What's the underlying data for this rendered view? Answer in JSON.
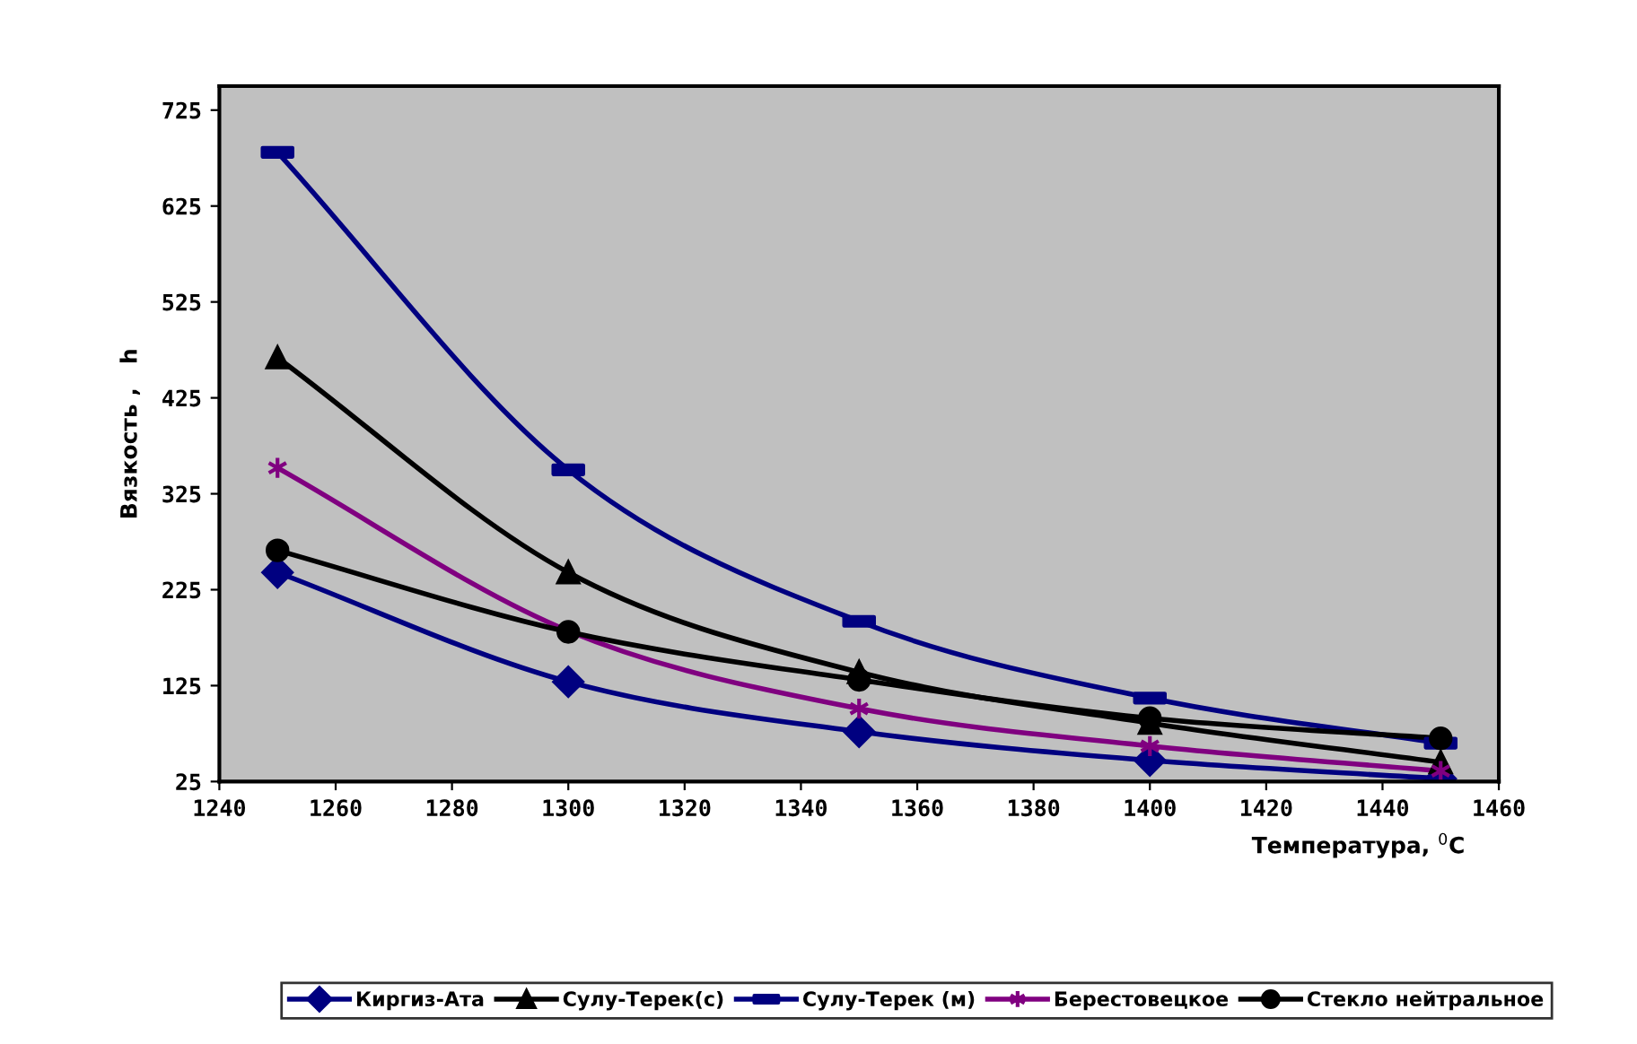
{
  "chart_data": {
    "type": "line",
    "xlabel": "Температура, $^{0}$C",
    "ylabel": "Вязкость ,   h",
    "x": [
      1250,
      1300,
      1350,
      1400,
      1450
    ],
    "series": [
      {
        "name": "Киргиз-Ата",
        "color": "#000080",
        "marker": "diamond",
        "values": [
          243,
          129,
          77,
          47,
          28
        ]
      },
      {
        "name": "Сулу-Терек(с)",
        "color": "#000000",
        "marker": "triangle",
        "values": [
          467,
          243,
          139,
          86,
          45
        ]
      },
      {
        "name": "Сулу-Терек (м)",
        "color": "#000080",
        "marker": "square",
        "values": [
          681,
          350,
          192,
          112,
          65
        ]
      },
      {
        "name": "Берестовецкое",
        "color": "#800080",
        "marker": "cross",
        "values": [
          352,
          182,
          101,
          62,
          36
        ]
      },
      {
        "name": "Стекло нейтральное",
        "color": "#000000",
        "marker": "circle",
        "values": [
          266,
          181,
          131,
          91,
          70
        ]
      }
    ],
    "xlim": [
      1240,
      1460
    ],
    "xticks": [
      1240,
      1260,
      1280,
      1300,
      1320,
      1340,
      1360,
      1380,
      1400,
      1420,
      1440,
      1460
    ],
    "ylim": [
      25,
      750
    ],
    "yticks": [
      25,
      125,
      225,
      325,
      425,
      525,
      625,
      725
    ],
    "grid": false,
    "legend": "bottom",
    "line_style": "solid"
  }
}
